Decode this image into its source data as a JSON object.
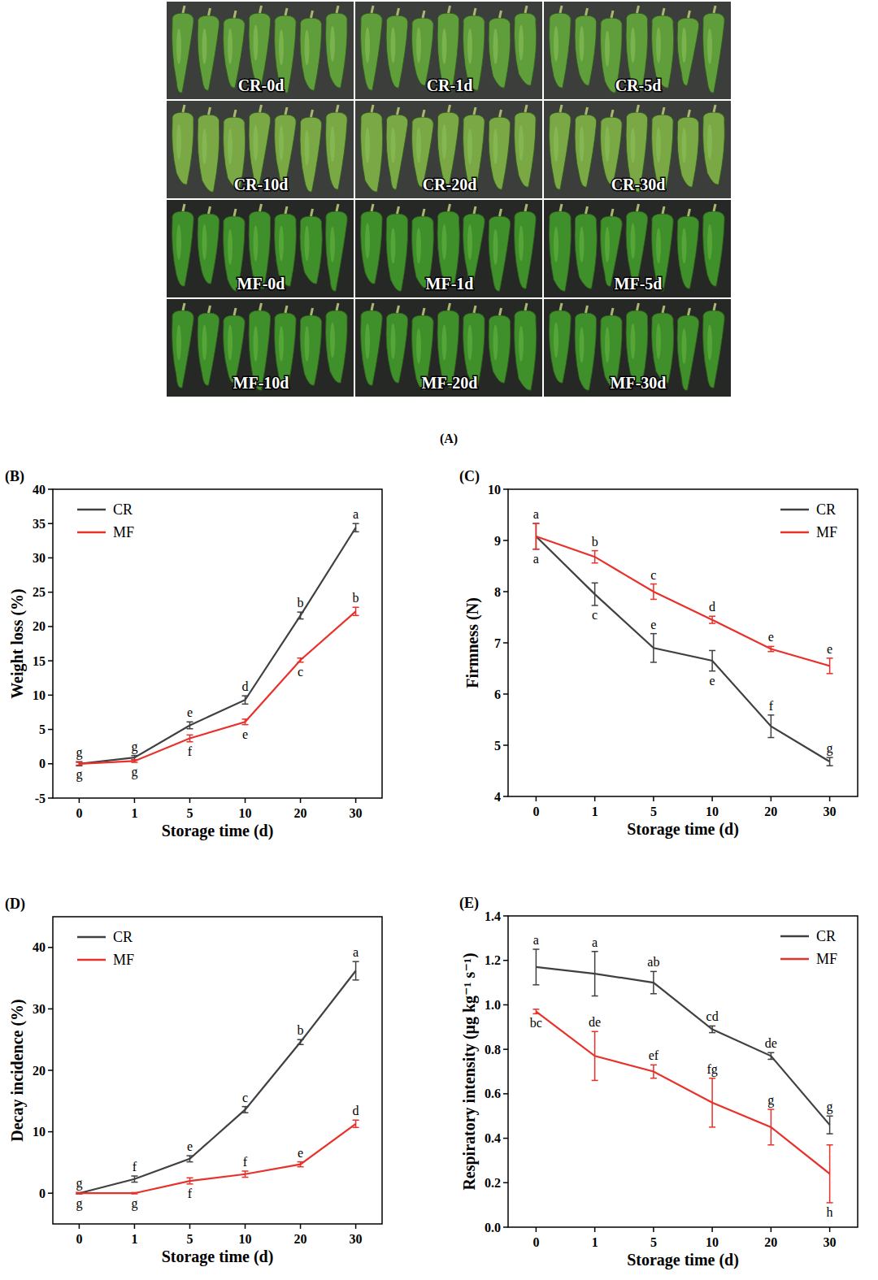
{
  "photo_panel": {
    "labels": [
      "CR-0d",
      "CR-1d",
      "CR-5d",
      "CR-10d",
      "CR-20d",
      "CR-30d",
      "MF-0d",
      "MF-1d",
      "MF-5d",
      "MF-10d",
      "MF-20d",
      "MF-30d"
    ],
    "caption": "(A)"
  },
  "chart_data": [
    {
      "type": "line",
      "panel": "(B)",
      "x_label": "Storage time (d)",
      "y_label": "Weight loss (%)",
      "categories": [
        "0",
        "1",
        "5",
        "10",
        "20",
        "30"
      ],
      "ylim": [
        -5,
        40
      ],
      "yticks": [
        -5,
        0,
        5,
        10,
        15,
        20,
        25,
        30,
        35,
        40
      ],
      "grid": false,
      "legend": "upper left",
      "series": [
        {
          "name": "CR",
          "color": "#404040",
          "values": [
            0,
            0.9,
            5.6,
            9.3,
            21.6,
            34.4
          ],
          "errors": [
            0.3,
            0.3,
            0.5,
            0.6,
            0.5,
            0.6
          ],
          "letters": [
            "g",
            "g",
            "e",
            "d",
            "b",
            "a"
          ]
        },
        {
          "name": "MF",
          "color": "#e8312a",
          "values": [
            0,
            0.4,
            3.7,
            6.1,
            15.1,
            22.2
          ],
          "errors": [
            0.2,
            0.2,
            0.5,
            0.4,
            0.3,
            0.6
          ],
          "letters": [
            "g",
            "g",
            "f",
            "e",
            "c",
            "b"
          ]
        }
      ]
    },
    {
      "type": "line",
      "panel": "(C)",
      "x_label": "Storage time (d)",
      "y_label": "Firmness (N)",
      "categories": [
        "0",
        "1",
        "5",
        "10",
        "20",
        "30"
      ],
      "ylim": [
        4,
        10
      ],
      "yticks": [
        4,
        5,
        6,
        7,
        8,
        9,
        10
      ],
      "grid": false,
      "legend": "upper right",
      "series": [
        {
          "name": "CR",
          "color": "#404040",
          "values": [
            9.08,
            7.95,
            6.9,
            6.65,
            5.37,
            4.68
          ],
          "errors": [
            0.25,
            0.22,
            0.28,
            0.2,
            0.22,
            0.08
          ],
          "letters": [
            "a",
            "c",
            "e",
            "e",
            "f",
            "g"
          ]
        },
        {
          "name": "MF",
          "color": "#e8312a",
          "values": [
            9.08,
            8.68,
            8.0,
            7.45,
            6.88,
            6.55
          ],
          "errors": [
            0.25,
            0.12,
            0.15,
            0.07,
            0.05,
            0.15
          ],
          "letters": [
            "a",
            "b",
            "c",
            "d",
            "e",
            "e"
          ]
        }
      ]
    },
    {
      "type": "line",
      "panel": "(D)",
      "x_label": "Storage time (d)",
      "y_label": "Decay incidence (%)",
      "categories": [
        "0",
        "1",
        "5",
        "10",
        "20",
        "30"
      ],
      "ylim": [
        -5,
        45
      ],
      "yticks": [
        0,
        10,
        20,
        30,
        40
      ],
      "grid": false,
      "legend": "upper left",
      "series": [
        {
          "name": "CR",
          "color": "#404040",
          "values": [
            0,
            2.3,
            5.6,
            13.6,
            24.6,
            36.2
          ],
          "errors": [
            0.1,
            0.5,
            0.5,
            0.5,
            0.4,
            1.5
          ],
          "letters": [
            "g",
            "f",
            "e",
            "c",
            "b",
            "a"
          ]
        },
        {
          "name": "MF",
          "color": "#e8312a",
          "values": [
            0,
            0,
            2.0,
            3.1,
            4.7,
            11.3
          ],
          "errors": [
            0.1,
            0.1,
            0.5,
            0.5,
            0.4,
            0.6
          ],
          "letters": [
            "g",
            "g",
            "f",
            "f",
            "e",
            "d"
          ]
        }
      ]
    },
    {
      "type": "line",
      "panel": "(E)",
      "x_label": "Storage time (d)",
      "y_label": "Respiratory intensity (μg kg⁻¹ s⁻¹)",
      "categories": [
        "0",
        "1",
        "5",
        "10",
        "20",
        "30"
      ],
      "ylim": [
        0,
        1.4
      ],
      "yticks": [
        {
          "value": 0,
          "label": "0.0"
        },
        0.2,
        0.4,
        0.6,
        0.8,
        {
          "value": 1,
          "label": "1.0"
        },
        1.2,
        1.4
      ],
      "grid": false,
      "legend": "upper right",
      "series": [
        {
          "name": "CR",
          "color": "#404040",
          "values": [
            1.17,
            1.14,
            1.1,
            0.89,
            0.77,
            0.46
          ],
          "errors": [
            0.08,
            0.1,
            0.05,
            0.015,
            0.015,
            0.04
          ],
          "letters": [
            "a",
            "a",
            "ab",
            "cd",
            "de",
            "g"
          ]
        },
        {
          "name": "MF",
          "color": "#e8312a",
          "values": [
            0.97,
            0.77,
            0.7,
            0.56,
            0.45,
            0.24
          ],
          "errors": [
            0.01,
            0.11,
            0.03,
            0.11,
            0.08,
            0.13
          ],
          "letters": [
            "bc",
            "de",
            "ef",
            "fg",
            "g",
            "h"
          ]
        }
      ]
    }
  ]
}
